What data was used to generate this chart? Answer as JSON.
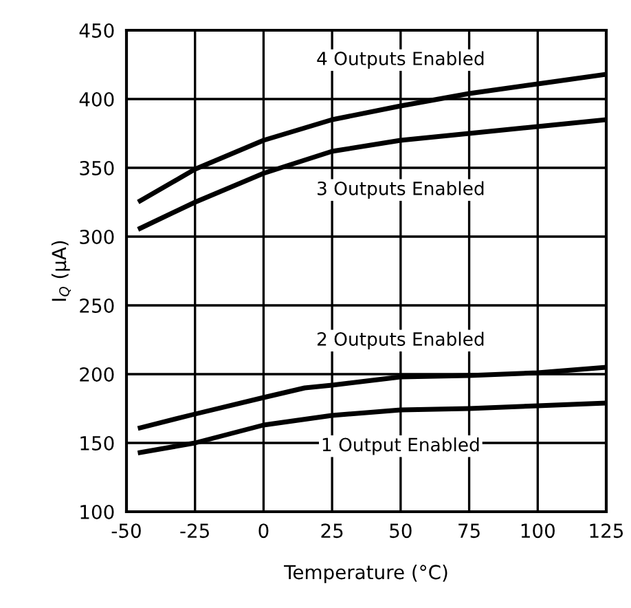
{
  "chart_data": {
    "type": "line",
    "xlabel": "Temperature (°C)",
    "ylabel": "I$_{Q}$ (μA)",
    "xlim": [
      -50,
      125
    ],
    "xticks": [
      -50,
      -25,
      0,
      25,
      50,
      75,
      100,
      125
    ],
    "ylim": [
      100,
      450
    ],
    "yticks": [
      100,
      150,
      200,
      250,
      300,
      350,
      400,
      450
    ],
    "grid": true,
    "legend": false,
    "marker": "none",
    "line_style": "solid",
    "series": [
      {
        "name": "4 Outputs Enabled",
        "color": "#000000",
        "x": [
          -45,
          -25,
          0,
          25,
          50,
          75,
          100,
          125
        ],
        "values": [
          326,
          349,
          370,
          385,
          395,
          404,
          411,
          418
        ]
      },
      {
        "name": "3 Outputs Enabled",
        "color": "#000000",
        "x": [
          -45,
          -25,
          0,
          25,
          50,
          75,
          100,
          125
        ],
        "values": [
          306,
          325,
          346,
          362,
          370,
          375,
          380,
          385
        ]
      },
      {
        "name": "2 Outputs Enabled",
        "color": "#000000",
        "x": [
          -45,
          -25,
          0,
          15,
          25,
          50,
          75,
          100,
          125
        ],
        "values": [
          161,
          171,
          183,
          190,
          192,
          198,
          199,
          201,
          205
        ]
      },
      {
        "name": "1 Output Enabled",
        "color": "#000000",
        "x": [
          -45,
          -25,
          0,
          25,
          50,
          75,
          100,
          125
        ],
        "values": [
          143,
          150,
          163,
          170,
          174,
          175,
          177,
          179
        ]
      }
    ]
  }
}
